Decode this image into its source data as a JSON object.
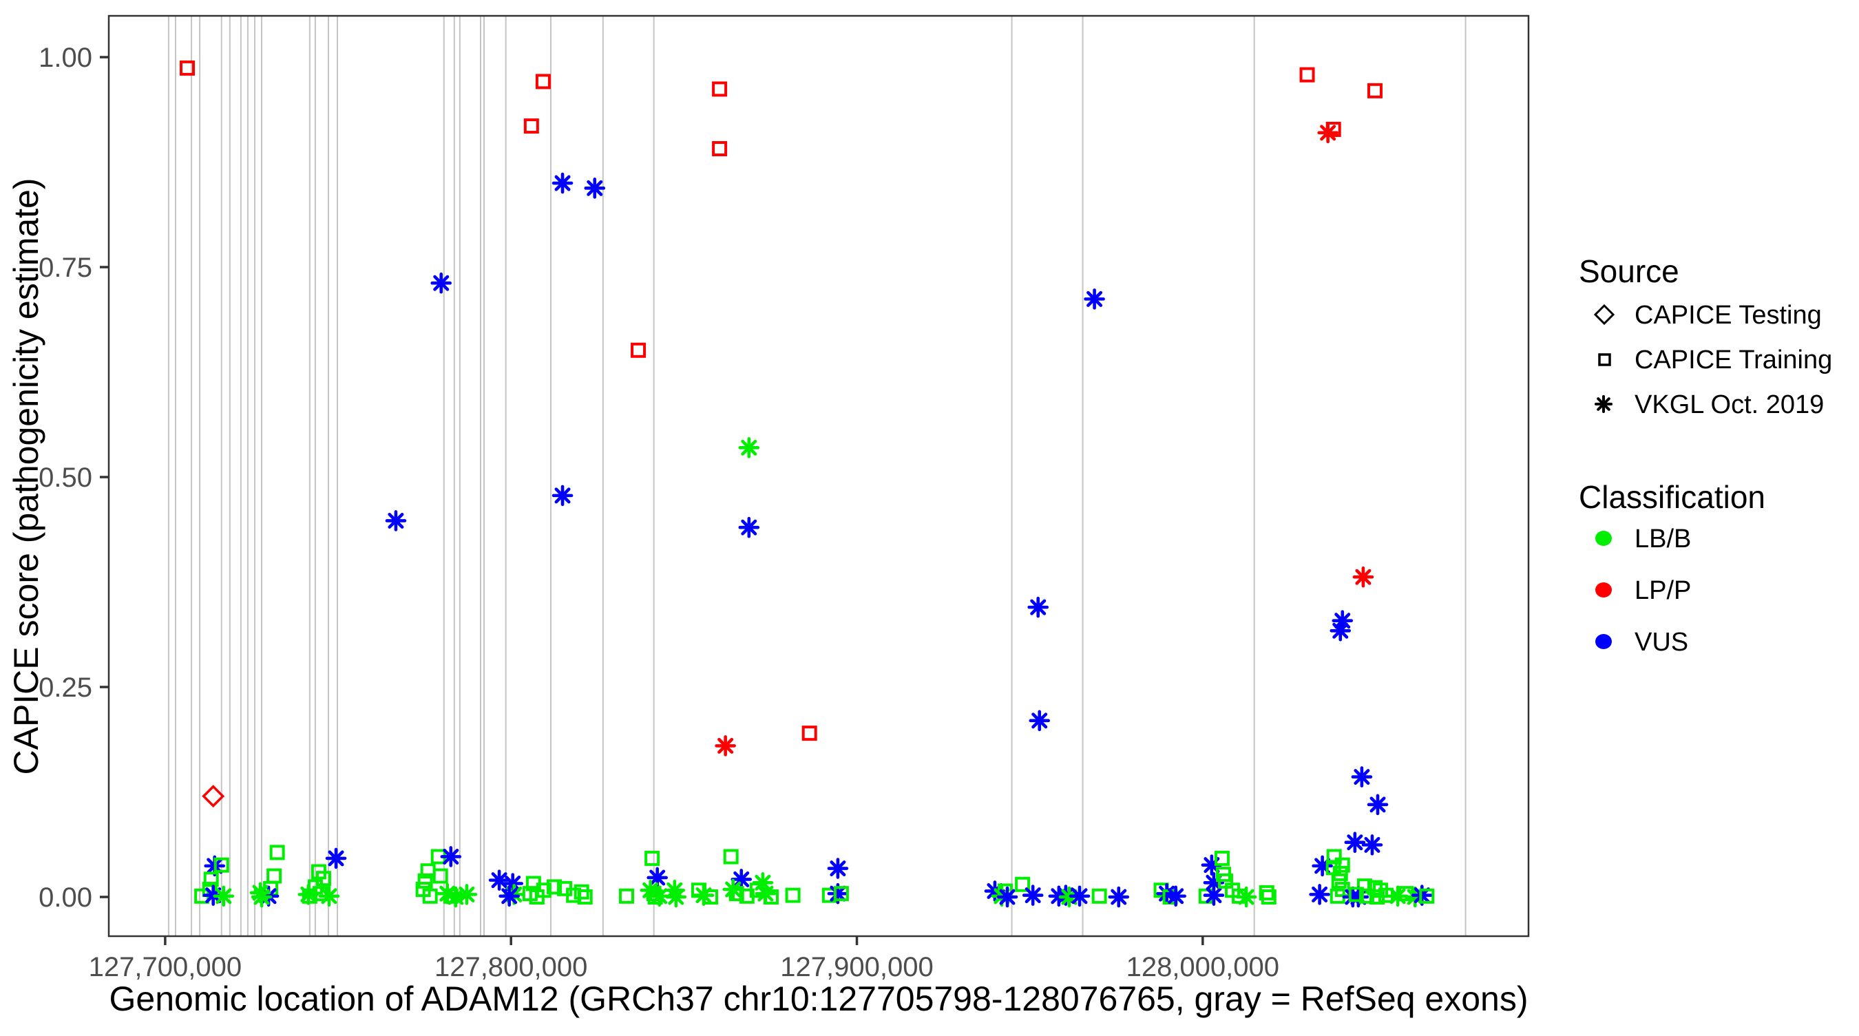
{
  "chart_data": {
    "type": "scatter",
    "title": "",
    "xlabel": "Genomic location of ADAM12 (GRCh37 chr10:127705798-128076765, gray = RefSeq exons)",
    "ylabel": "CAPICE score (pathogenicity estimate)",
    "x_axis": {
      "label": "Genomic location of ADAM12 (GRCh37 chr10:127705798-128076765, gray = RefSeq exons)",
      "domain": [
        127683700,
        128094200
      ],
      "ticks": [
        {
          "value": 127700000,
          "label": "127,700,000"
        },
        {
          "value": 127800000,
          "label": "127,800,000"
        },
        {
          "value": 127900000,
          "label": "127,900,000"
        },
        {
          "value": 128000000,
          "label": "128,000,000"
        }
      ]
    },
    "y_axis": {
      "label": "CAPICE score (pathogenicity estimate)",
      "domain": [
        -0.0467,
        1.0492
      ],
      "ticks": [
        {
          "value": 0.0,
          "label": "0.00"
        },
        {
          "value": 0.25,
          "label": "0.25"
        },
        {
          "value": 0.5,
          "label": "0.50"
        },
        {
          "value": 0.75,
          "label": "0.75"
        },
        {
          "value": 1.0,
          "label": "1.00"
        }
      ]
    },
    "colors": {
      "LB/B": "#00ee00",
      "LP/P": "#ff0000",
      "VUS": "#0000ff",
      "exon": "#c4c4c4"
    },
    "exons_note": "gray vertical lines = RefSeq exons",
    "exons": [
      127701000,
      127703000,
      127707600,
      127710000,
      127716300,
      127718700,
      127721900,
      127723900,
      127725900,
      127727900,
      127741800,
      127743400,
      127747200,
      127749800,
      127780600,
      127783600,
      127785200,
      127791200,
      127792200,
      127798500,
      127811500,
      127826600,
      127841300,
      127944800,
      127965300,
      128014900,
      128076000
    ],
    "points_legend": "each point = [genomic_position, capice_score, source(training|testing|vkgl), classification]",
    "points": [
      [
        127706400,
        0.987,
        "training",
        "LP/P"
      ],
      [
        127805900,
        0.918,
        "training",
        "LP/P"
      ],
      [
        127809300,
        0.971,
        "training",
        "LP/P"
      ],
      [
        127860300,
        0.962,
        "training",
        "LP/P"
      ],
      [
        127860300,
        0.891,
        "training",
        "LP/P"
      ],
      [
        127836800,
        0.651,
        "training",
        "LP/P"
      ],
      [
        127886300,
        0.195,
        "training",
        "LP/P"
      ],
      [
        128030200,
        0.979,
        "training",
        "LP/P"
      ],
      [
        128049800,
        0.96,
        "training",
        "LP/P"
      ],
      [
        128037800,
        0.914,
        "training",
        "LP/P"
      ],
      [
        128036200,
        0.91,
        "vkgl",
        "LP/P"
      ],
      [
        128046400,
        0.381,
        "vkgl",
        "LP/P"
      ],
      [
        127862000,
        0.18,
        "vkgl",
        "LP/P"
      ],
      [
        127713900,
        0.12,
        "testing",
        "LP/P"
      ],
      [
        127814900,
        0.85,
        "vkgl",
        "VUS"
      ],
      [
        127824200,
        0.844,
        "vkgl",
        "VUS"
      ],
      [
        127779800,
        0.731,
        "vkgl",
        "VUS"
      ],
      [
        127766700,
        0.448,
        "vkgl",
        "VUS"
      ],
      [
        127814900,
        0.478,
        "vkgl",
        "VUS"
      ],
      [
        127868800,
        0.535,
        "vkgl",
        "LB/B"
      ],
      [
        127868800,
        0.44,
        "vkgl",
        "VUS"
      ],
      [
        127952400,
        0.345,
        "vkgl",
        "VUS"
      ],
      [
        127952800,
        0.21,
        "vkgl",
        "VUS"
      ],
      [
        127968700,
        0.712,
        "vkgl",
        "VUS"
      ],
      [
        128040400,
        0.329,
        "vkgl",
        "VUS"
      ],
      [
        128039800,
        0.317,
        "vkgl",
        "VUS"
      ],
      [
        128046000,
        0.143,
        "vkgl",
        "VUS"
      ],
      [
        128050600,
        0.11,
        "vkgl",
        "VUS"
      ],
      [
        128044000,
        0.065,
        "vkgl",
        "VUS"
      ],
      [
        128049000,
        0.062,
        "vkgl",
        "VUS"
      ],
      [
        127714300,
        0.037,
        "vkgl",
        "VUS"
      ],
      [
        127716300,
        0.038,
        "training",
        "LB/B"
      ],
      [
        127713300,
        0.021,
        "training",
        "LB/B"
      ],
      [
        127712900,
        0.009,
        "training",
        "LB/B"
      ],
      [
        127710600,
        0.001,
        "training",
        "LB/B"
      ],
      [
        127713900,
        0.002,
        "vkgl",
        "VUS"
      ],
      [
        127716900,
        0.001,
        "vkgl",
        "LB/B"
      ],
      [
        127732400,
        0.053,
        "training",
        "LB/B"
      ],
      [
        127731500,
        0.025,
        "training",
        "LB/B"
      ],
      [
        127730500,
        0.01,
        "training",
        "LB/B"
      ],
      [
        127729900,
        0.001,
        "vkgl",
        "VUS"
      ],
      [
        127727500,
        0.005,
        "vkgl",
        "LB/B"
      ],
      [
        127727900,
        0.0,
        "vkgl",
        "LB/B"
      ],
      [
        127749400,
        0.046,
        "vkgl",
        "VUS"
      ],
      [
        127744400,
        0.03,
        "training",
        "LB/B"
      ],
      [
        127745800,
        0.022,
        "training",
        "LB/B"
      ],
      [
        127743400,
        0.012,
        "training",
        "LB/B"
      ],
      [
        127744800,
        0.004,
        "training",
        "LB/B"
      ],
      [
        127741800,
        0.001,
        "training",
        "LB/B"
      ],
      [
        127741400,
        0.003,
        "vkgl",
        "LB/B"
      ],
      [
        127747400,
        0.001,
        "vkgl",
        "LB/B"
      ],
      [
        127779000,
        0.048,
        "training",
        "LB/B"
      ],
      [
        127782600,
        0.048,
        "vkgl",
        "VUS"
      ],
      [
        127776000,
        0.031,
        "training",
        "LB/B"
      ],
      [
        127779600,
        0.025,
        "training",
        "LB/B"
      ],
      [
        127775200,
        0.019,
        "training",
        "LB/B"
      ],
      [
        127774600,
        0.009,
        "training",
        "LB/B"
      ],
      [
        127776600,
        0.001,
        "training",
        "LB/B"
      ],
      [
        127781600,
        0.004,
        "vkgl",
        "LB/B"
      ],
      [
        127782600,
        0.001,
        "training",
        "LB/B"
      ],
      [
        127784000,
        0.0,
        "vkgl",
        "LB/B"
      ],
      [
        127787200,
        0.003,
        "vkgl",
        "LB/B"
      ],
      [
        127796600,
        0.02,
        "vkgl",
        "VUS"
      ],
      [
        127800500,
        0.016,
        "vkgl",
        "VUS"
      ],
      [
        127800900,
        0.003,
        "vkgl",
        "LB/B"
      ],
      [
        127799500,
        0.001,
        "vkgl",
        "VUS"
      ],
      [
        127805500,
        0.004,
        "training",
        "LB/B"
      ],
      [
        127806500,
        0.016,
        "training",
        "LB/B"
      ],
      [
        127807500,
        0.0,
        "training",
        "LB/B"
      ],
      [
        127809500,
        0.008,
        "training",
        "LB/B"
      ],
      [
        127812500,
        0.012,
        "training",
        "LB/B"
      ],
      [
        127815500,
        0.01,
        "training",
        "LB/B"
      ],
      [
        127818100,
        0.002,
        "training",
        "LB/B"
      ],
      [
        127820400,
        0.006,
        "training",
        "LB/B"
      ],
      [
        127821400,
        0.0,
        "training",
        "LB/B"
      ],
      [
        127833400,
        0.001,
        "training",
        "LB/B"
      ],
      [
        127840800,
        0.046,
        "training",
        "LB/B"
      ],
      [
        127842300,
        0.023,
        "vkgl",
        "VUS"
      ],
      [
        127840300,
        0.008,
        "vkgl",
        "LB/B"
      ],
      [
        127841300,
        0.004,
        "training",
        "LB/B"
      ],
      [
        127842900,
        0.001,
        "vkgl",
        "LB/B"
      ],
      [
        127841700,
        0.0,
        "training",
        "LB/B"
      ],
      [
        127847300,
        0.008,
        "vkgl",
        "LB/B"
      ],
      [
        127847700,
        0.0,
        "vkgl",
        "LB/B"
      ],
      [
        127854300,
        0.008,
        "training",
        "LB/B"
      ],
      [
        127855700,
        0.002,
        "vkgl",
        "LB/B"
      ],
      [
        127857700,
        0.0,
        "training",
        "LB/B"
      ],
      [
        127863600,
        0.048,
        "training",
        "LB/B"
      ],
      [
        127866600,
        0.021,
        "vkgl",
        "VUS"
      ],
      [
        127864200,
        0.009,
        "vkgl",
        "LB/B"
      ],
      [
        127865200,
        0.004,
        "training",
        "LB/B"
      ],
      [
        127868200,
        0.001,
        "training",
        "LB/B"
      ],
      [
        127872800,
        0.017,
        "vkgl",
        "LB/B"
      ],
      [
        127871200,
        0.008,
        "training",
        "LB/B"
      ],
      [
        127873600,
        0.004,
        "vkgl",
        "LB/B"
      ],
      [
        127875200,
        0.0,
        "training",
        "LB/B"
      ],
      [
        127881500,
        0.002,
        "training",
        "LB/B"
      ],
      [
        127892100,
        0.002,
        "training",
        "LB/B"
      ],
      [
        127894500,
        0.034,
        "vkgl",
        "VUS"
      ],
      [
        127894500,
        0.004,
        "vkgl",
        "VUS"
      ],
      [
        127895500,
        0.004,
        "training",
        "LB/B"
      ],
      [
        127939900,
        0.007,
        "vkgl",
        "VUS"
      ],
      [
        127942900,
        0.007,
        "training",
        "LB/B"
      ],
      [
        127941900,
        0.001,
        "vkgl",
        "LB/B"
      ],
      [
        127943500,
        0.0,
        "vkgl",
        "VUS"
      ],
      [
        127947900,
        0.015,
        "training",
        "LB/B"
      ],
      [
        127950900,
        0.002,
        "vkgl",
        "VUS"
      ],
      [
        127958400,
        0.001,
        "vkgl",
        "VUS"
      ],
      [
        127960400,
        0.002,
        "vkgl",
        "VUS"
      ],
      [
        127961400,
        0.0,
        "vkgl",
        "LB/B"
      ],
      [
        127964400,
        0.001,
        "vkgl",
        "VUS"
      ],
      [
        127970100,
        0.001,
        "training",
        "LB/B"
      ],
      [
        127975700,
        0.0,
        "vkgl",
        "VUS"
      ],
      [
        127988000,
        0.008,
        "training",
        "LB/B"
      ],
      [
        127989600,
        0.004,
        "vkgl",
        "VUS"
      ],
      [
        127990600,
        0.0,
        "training",
        "LB/B"
      ],
      [
        127992200,
        0.001,
        "vkgl",
        "VUS"
      ],
      [
        128001000,
        0.001,
        "training",
        "LB/B"
      ],
      [
        128002600,
        0.038,
        "vkgl",
        "VUS"
      ],
      [
        128003200,
        0.017,
        "vkgl",
        "VUS"
      ],
      [
        128003200,
        0.002,
        "vkgl",
        "VUS"
      ],
      [
        128005600,
        0.046,
        "training",
        "LB/B"
      ],
      [
        128006000,
        0.027,
        "training",
        "LB/B"
      ],
      [
        128006600,
        0.019,
        "training",
        "LB/B"
      ],
      [
        128008600,
        0.008,
        "training",
        "LB/B"
      ],
      [
        128010600,
        0.001,
        "training",
        "LB/B"
      ],
      [
        128012600,
        0.0,
        "vkgl",
        "LB/B"
      ],
      [
        128018500,
        0.005,
        "training",
        "LB/B"
      ],
      [
        128019100,
        0.0,
        "training",
        "LB/B"
      ],
      [
        128034600,
        0.037,
        "vkgl",
        "VUS"
      ],
      [
        128033800,
        0.003,
        "vkgl",
        "VUS"
      ],
      [
        128038000,
        0.048,
        "training",
        "LB/B"
      ],
      [
        128037800,
        0.035,
        "training",
        "LB/B"
      ],
      [
        128040400,
        0.038,
        "training",
        "LB/B"
      ],
      [
        128039800,
        0.028,
        "training",
        "LB/B"
      ],
      [
        128039400,
        0.019,
        "training",
        "LB/B"
      ],
      [
        128040400,
        0.009,
        "training",
        "LB/B"
      ],
      [
        128039000,
        0.001,
        "training",
        "LB/B"
      ],
      [
        128046800,
        0.013,
        "training",
        "LB/B"
      ],
      [
        128049800,
        0.011,
        "training",
        "LB/B"
      ],
      [
        128051400,
        0.008,
        "training",
        "LB/B"
      ],
      [
        128043400,
        0.0,
        "vkgl",
        "VUS"
      ],
      [
        128045000,
        0.0,
        "vkgl",
        "VUS"
      ],
      [
        128044400,
        0.003,
        "training",
        "LB/B"
      ],
      [
        128047400,
        0.001,
        "training",
        "LB/B"
      ],
      [
        128050400,
        0.0,
        "training",
        "LB/B"
      ],
      [
        128053000,
        0.002,
        "training",
        "LB/B"
      ],
      [
        128056400,
        0.001,
        "vkgl",
        "LB/B"
      ],
      [
        128058800,
        0.004,
        "training",
        "LB/B"
      ],
      [
        128061400,
        0.0,
        "vkgl",
        "LB/B"
      ],
      [
        128063400,
        0.002,
        "vkgl",
        "VUS"
      ],
      [
        128064800,
        0.001,
        "training",
        "LB/B"
      ]
    ],
    "legend": {
      "source": {
        "title": "Source",
        "items": [
          {
            "marker": "diamond",
            "label": "CAPICE Testing"
          },
          {
            "marker": "square",
            "label": "CAPICE Training"
          },
          {
            "marker": "asterisk",
            "label": "VKGL Oct. 2019"
          }
        ]
      },
      "classification": {
        "title": "Classification",
        "items": [
          {
            "color": "#00ee00",
            "label": "LB/B"
          },
          {
            "color": "#ff0000",
            "label": "LP/P"
          },
          {
            "color": "#0000ff",
            "label": "VUS"
          }
        ]
      }
    }
  }
}
